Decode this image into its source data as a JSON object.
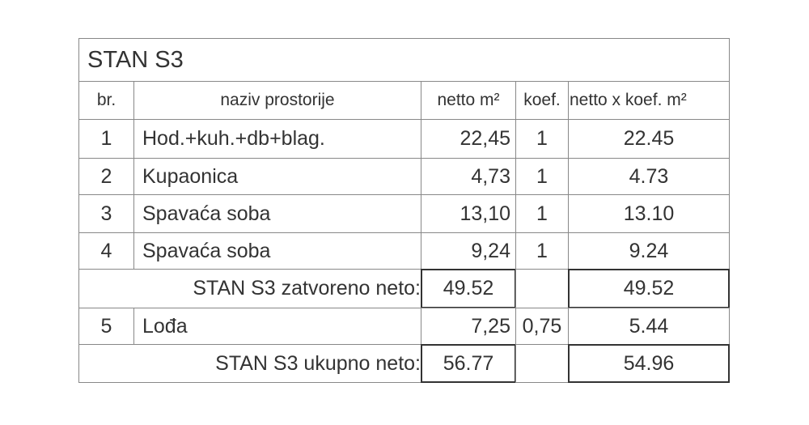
{
  "title": "STAN S3",
  "headers": {
    "br": "br.",
    "naziv": "naziv prostorije",
    "netto": "netto m²",
    "koef": "koef.",
    "nxk": "netto x koef. m²"
  },
  "rows": [
    {
      "br": "1",
      "naziv": "Hod.+kuh.+db+blag.",
      "netto": "22,45",
      "koef": "1",
      "nxk": "22.45"
    },
    {
      "br": "2",
      "naziv": "Kupaonica",
      "netto": "4,73",
      "koef": "1",
      "nxk": "4.73"
    },
    {
      "br": "3",
      "naziv": "Spavaća soba",
      "netto": "13,10",
      "koef": "1",
      "nxk": "13.10"
    },
    {
      "br": "4",
      "naziv": "Spavaća soba",
      "netto": "9,24",
      "koef": "1",
      "nxk": "9.24"
    }
  ],
  "subtotal": {
    "label": "STAN S3 zatvoreno neto:",
    "netto": "49.52",
    "nxk": "49.52"
  },
  "row5": {
    "br": "5",
    "naziv": "Lođa",
    "netto": "7,25",
    "koef": "0,75",
    "nxk": "5.44"
  },
  "total": {
    "label": "STAN S3 ukupno neto:",
    "netto": "56.77",
    "nxk": "54.96"
  }
}
